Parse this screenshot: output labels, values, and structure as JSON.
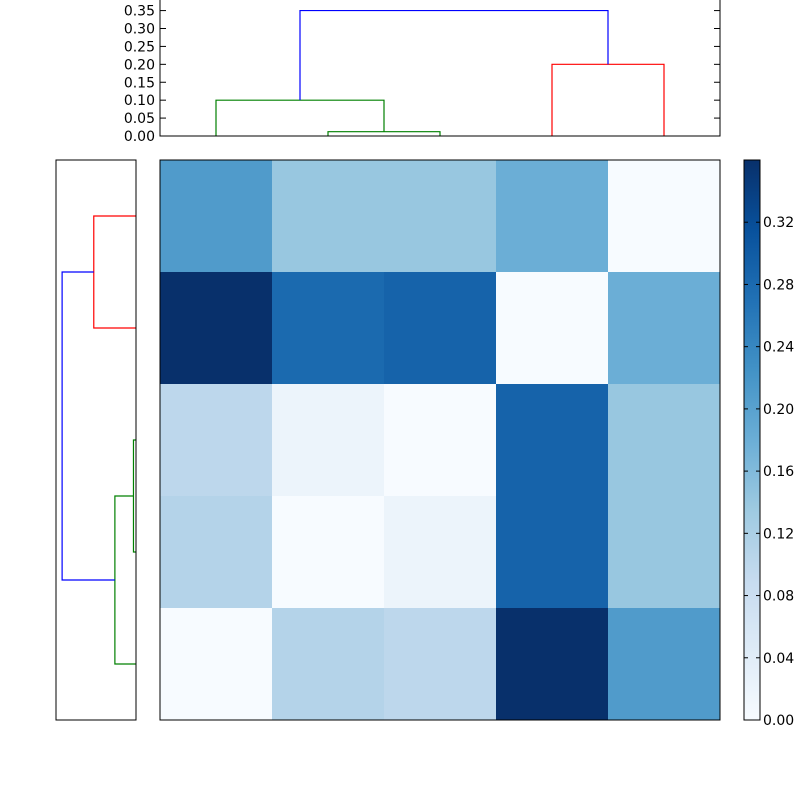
{
  "chart_data": [
    {
      "type": "heatmap",
      "n": 5,
      "values": [
        [
          0.21,
          0.14,
          0.14,
          0.18,
          0.0
        ],
        [
          0.36,
          0.28,
          0.29,
          0.0,
          0.18
        ],
        [
          0.1,
          0.02,
          0.0,
          0.29,
          0.14
        ],
        [
          0.11,
          0.0,
          0.02,
          0.29,
          0.14
        ],
        [
          0.0,
          0.11,
          0.1,
          0.36,
          0.21
        ]
      ],
      "grid": false
    },
    {
      "type": "dendrogram",
      "orientation": "top",
      "ylim": [
        0,
        0.36
      ],
      "yticks": [
        "0.00",
        "0.05",
        "0.10",
        "0.15",
        "0.20",
        "0.25",
        "0.30",
        "0.35"
      ],
      "links": [
        {
          "left": 1.5,
          "right": 2.5,
          "height": 0.012,
          "left_base": 0,
          "right_base": 0,
          "color": "#008000"
        },
        {
          "left": 0.5,
          "right": 2.0,
          "height": 0.1,
          "left_base": 0,
          "right_base": 0.012,
          "color": "#008000"
        },
        {
          "left": 3.5,
          "right": 4.5,
          "height": 0.2,
          "left_base": 0,
          "right_base": 0,
          "color": "#ff0000"
        },
        {
          "left": 1.25,
          "right": 4.0,
          "height": 0.35,
          "left_base": 0.1,
          "right_base": 0.2,
          "color": "#0000ff"
        }
      ]
    },
    {
      "type": "dendrogram",
      "orientation": "left",
      "xlim": [
        0,
        0.36
      ],
      "links": [
        {
          "left": 2.5,
          "right": 3.5,
          "height": 0.012,
          "left_base": 0,
          "right_base": 0,
          "color": "#008000"
        },
        {
          "left": 3.0,
          "right": 4.5,
          "height": 0.1,
          "left_base": 0.012,
          "right_base": 0,
          "color": "#008000"
        },
        {
          "left": 0.5,
          "right": 1.5,
          "height": 0.2,
          "left_base": 0,
          "right_base": 0,
          "color": "#ff0000"
        },
        {
          "left": 1.0,
          "right": 3.75,
          "height": 0.35,
          "left_base": 0.2,
          "right_base": 0.1,
          "color": "#0000ff"
        }
      ]
    },
    {
      "type": "colorbar",
      "range": [
        0,
        0.36
      ],
      "ticks": [
        "0.00",
        "0.04",
        "0.08",
        "0.12",
        "0.16",
        "0.20",
        "0.24",
        "0.28",
        "0.32"
      ],
      "colormap": [
        "#f7fbff",
        "#deebf7",
        "#c6dbef",
        "#9ecae1",
        "#6baed6",
        "#4292c6",
        "#2171b5",
        "#08519c",
        "#08306b"
      ]
    }
  ]
}
